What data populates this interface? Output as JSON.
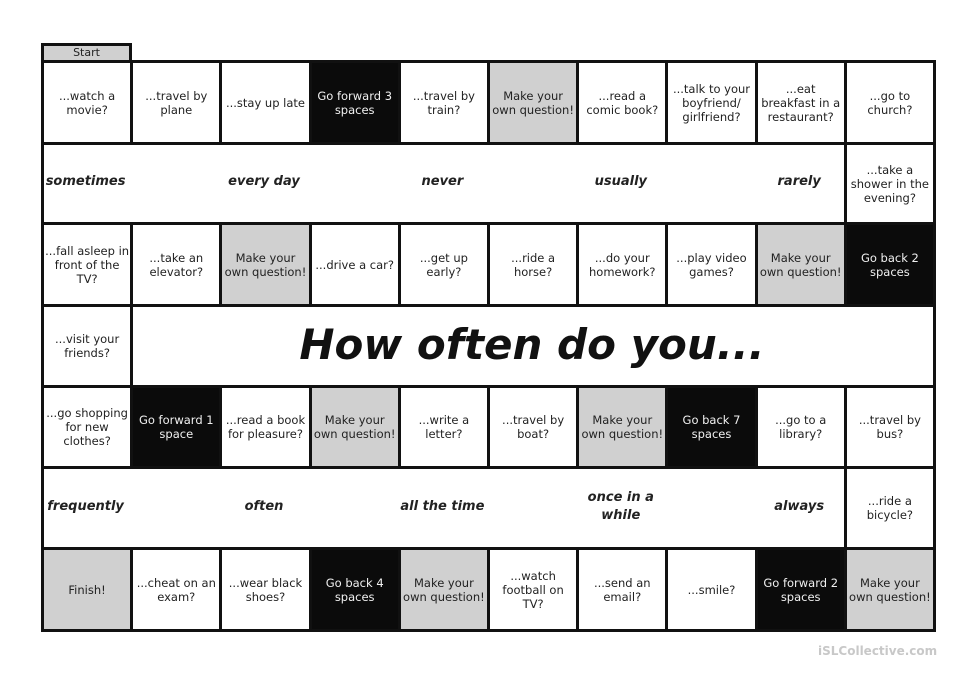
{
  "start_label": "Start",
  "title": "How often do you...",
  "watermark": "iSLCollective.com",
  "colors": {
    "white": "#ffffff",
    "gray": "#d0d0d0",
    "black": "#0b0b0b"
  },
  "rows": [
    [
      {
        "t": "...watch a movie?",
        "s": "white"
      },
      {
        "t": "...travel by plane",
        "s": "white"
      },
      {
        "t": "...stay up late",
        "s": "white"
      },
      {
        "t": "Go forward 3 spaces",
        "s": "black"
      },
      {
        "t": "...travel by train?",
        "s": "white"
      },
      {
        "t": "Make your own question!",
        "s": "gray"
      },
      {
        "t": "...read a comic book?",
        "s": "white"
      },
      {
        "t": "...talk to your boyfriend/ girlfriend?",
        "s": "white"
      },
      {
        "t": "...eat breakfast in a restaurant?",
        "s": "white"
      },
      {
        "t": "...go to church?",
        "s": "white"
      }
    ],
    [
      {
        "t": "...take a shower in the evening?",
        "s": "white"
      }
    ],
    [
      {
        "t": "...fall asleep in front of the TV?",
        "s": "white"
      },
      {
        "t": "...take an elevator?",
        "s": "white"
      },
      {
        "t": "Make your own question!",
        "s": "gray"
      },
      {
        "t": "...drive a car?",
        "s": "white"
      },
      {
        "t": "...get up early?",
        "s": "white"
      },
      {
        "t": "...ride a horse?",
        "s": "white"
      },
      {
        "t": "...do your homework?",
        "s": "white"
      },
      {
        "t": "...play video games?",
        "s": "white"
      },
      {
        "t": "Make your own question!",
        "s": "gray"
      },
      {
        "t": "Go back 2 spaces",
        "s": "black"
      }
    ],
    [
      {
        "t": "...visit your friends?",
        "s": "white"
      }
    ],
    [
      {
        "t": "...go shopping for new clothes?",
        "s": "white"
      },
      {
        "t": "Go forward 1 space",
        "s": "black"
      },
      {
        "t": "...read a book for pleasure?",
        "s": "white"
      },
      {
        "t": "Make your own question!",
        "s": "gray"
      },
      {
        "t": "...write a letter?",
        "s": "white"
      },
      {
        "t": "...travel by boat?",
        "s": "white"
      },
      {
        "t": "Make your own question!",
        "s": "gray"
      },
      {
        "t": "Go back 7 spaces",
        "s": "black"
      },
      {
        "t": "...go to a library?",
        "s": "white"
      },
      {
        "t": "...travel by bus?",
        "s": "white"
      }
    ],
    [
      {
        "t": "...ride a bicycle?",
        "s": "white"
      }
    ],
    [
      {
        "t": "Finish!",
        "s": "gray"
      },
      {
        "t": "...cheat on an exam?",
        "s": "white"
      },
      {
        "t": "...wear black shoes?",
        "s": "white"
      },
      {
        "t": "Go back 4 spaces",
        "s": "black"
      },
      {
        "t": "Make your own question!",
        "s": "gray"
      },
      {
        "t": "...watch football on TV?",
        "s": "white"
      },
      {
        "t": "...send an email?",
        "s": "white"
      },
      {
        "t": "...smile?",
        "s": "white"
      },
      {
        "t": "Go forward 2 spaces",
        "s": "black"
      },
      {
        "t": "Make your own question!",
        "s": "gray"
      }
    ]
  ],
  "adverbs_top": [
    "sometimes",
    "every day",
    "never",
    "usually",
    "rarely"
  ],
  "adverbs_bottom": [
    "frequently",
    "often",
    "all the time",
    "once in a while",
    "always"
  ]
}
